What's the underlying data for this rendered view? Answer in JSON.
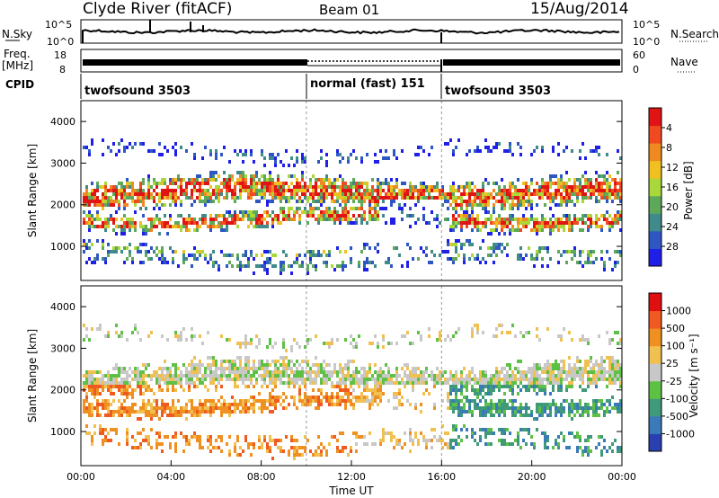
{
  "header": {
    "site": "Clyde River (fitACF)",
    "beam": "Beam 01",
    "date": "15/Aug/2014"
  },
  "panels": {
    "nsky": {
      "label": "N.Sky",
      "right_label": "N.Search",
      "left_ticks": [
        "10^5",
        "10^0"
      ],
      "right_ticks": [
        "10^5",
        "10^0"
      ]
    },
    "freq": {
      "label_top": "Freq.",
      "label_bottom": "[MHz]",
      "right_label": "Nave",
      "left_ticks": [
        "18",
        "8"
      ],
      "right_ticks": [
        "60",
        "0"
      ]
    },
    "cpid": {
      "label": "CPID",
      "segments": [
        {
          "name": "twofsound 3503",
          "start_h": 0,
          "end_h": 10
        },
        {
          "name": "normal (fast) 151",
          "start_h": 10,
          "end_h": 16
        },
        {
          "name": "twofsound 3503",
          "start_h": 16,
          "end_h": 24
        }
      ]
    }
  },
  "chart_data": [
    {
      "type": "heatmap",
      "name": "Power",
      "ylabel": "Slant Range [km]",
      "ylim": [
        180,
        4500
      ],
      "yticks": [
        1000,
        2000,
        3000,
        4000
      ],
      "xlim": [
        0,
        24
      ],
      "colorbar": {
        "label": "Power [dB]",
        "ticks": [
          "4",
          "8",
          "12",
          "16",
          "20",
          "24",
          "28"
        ],
        "colors": [
          "#1f1fe8",
          "#2f57c4",
          "#3f8a8a",
          "#5ea85a",
          "#a8d83a",
          "#f0c020",
          "#f08a20",
          "#f04a20",
          "#e01414"
        ]
      }
    },
    {
      "type": "heatmap",
      "name": "Velocity",
      "ylabel": "Slant Range [km]",
      "ylim": [
        180,
        4500
      ],
      "yticks": [
        1000,
        2000,
        3000,
        4000
      ],
      "xlim": [
        0,
        24
      ],
      "xlabel": "Time UT",
      "xticks": [
        "00:00",
        "04:00",
        "08:00",
        "12:00",
        "16:00",
        "20:00",
        "00:00"
      ],
      "colorbar": {
        "label": "Velocity [m s⁻¹]",
        "ticks": [
          "1000",
          "500",
          "100",
          "25",
          "-25",
          "-100",
          "-500",
          "-1000"
        ],
        "colors": [
          "#2a3fb0",
          "#3a7ab8",
          "#3f9a7a",
          "#5ec045",
          "#c8c8c8",
          "#f0c050",
          "#f09020",
          "#f05a20",
          "#e01010"
        ]
      }
    }
  ]
}
